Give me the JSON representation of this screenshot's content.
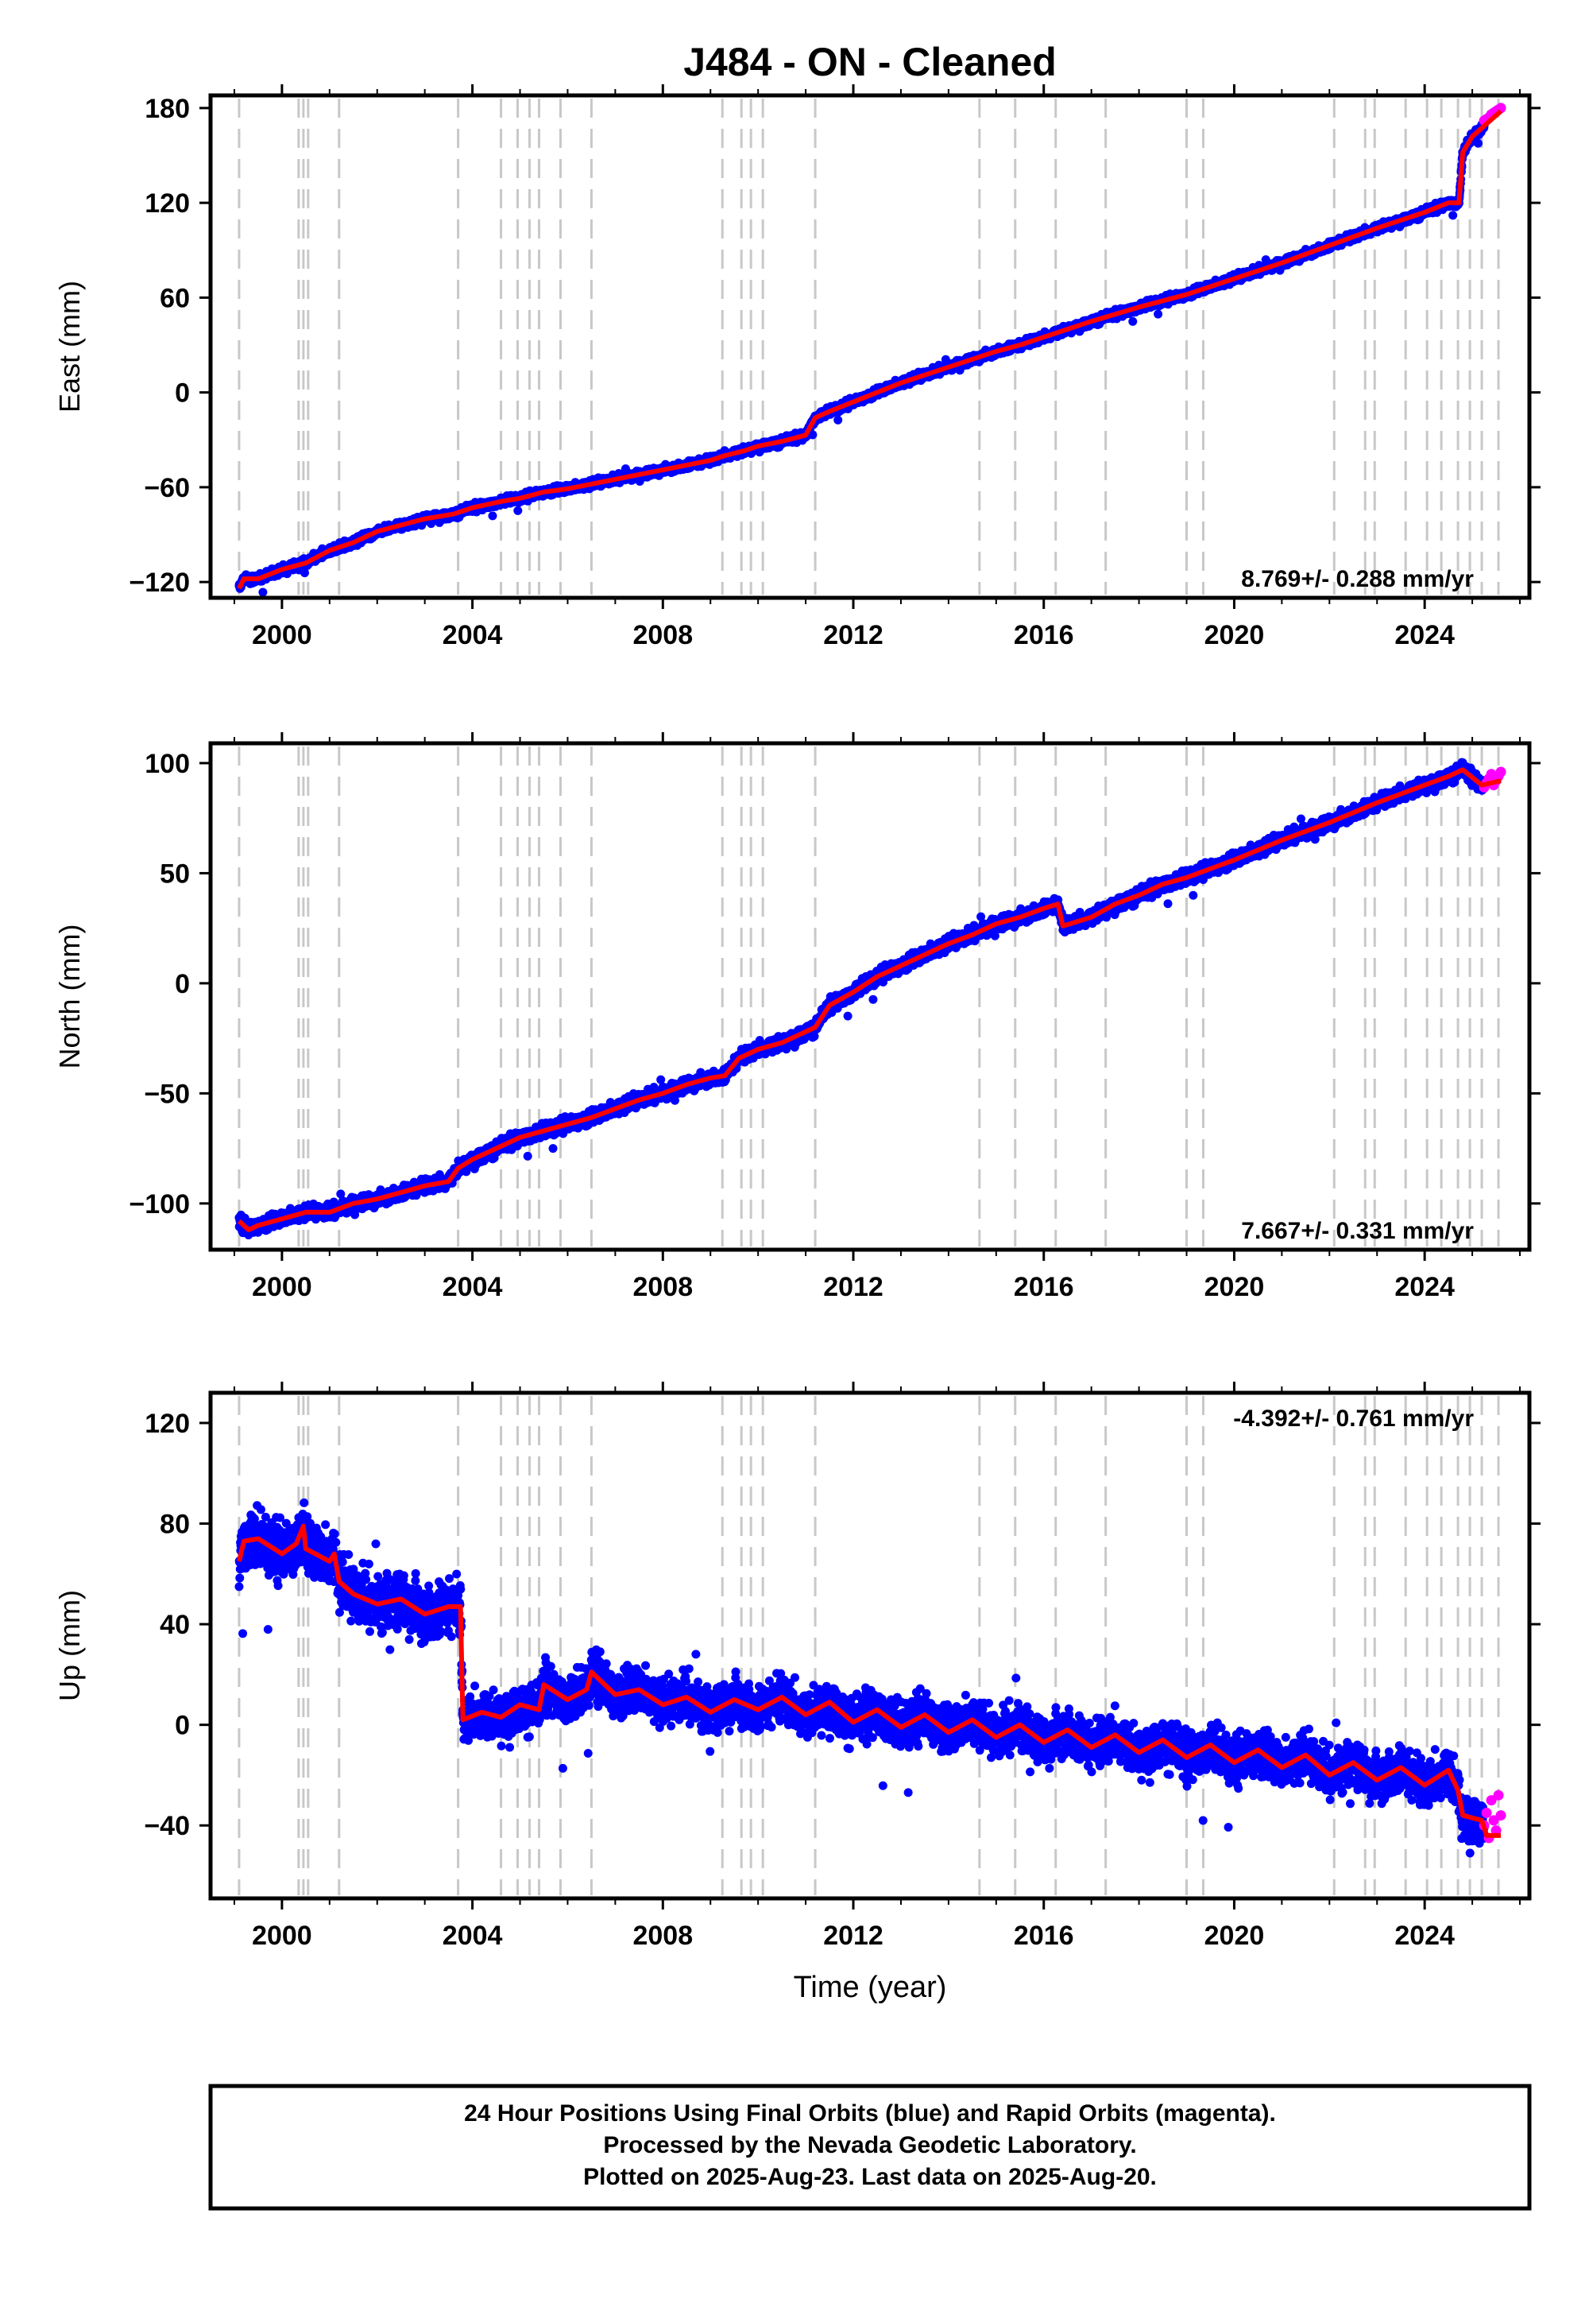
{
  "title": "J484  - ON - Cleaned",
  "colors": {
    "final_orbits": "#0000ff",
    "rapid_orbits": "#ff00ff",
    "model_fit": "#ff0000",
    "event_lines": "#c8c8c8"
  },
  "chart_data": [
    {
      "type": "scatter",
      "component": "east",
      "ylabel": "East (mm)",
      "xlabel": "",
      "xlim": [
        1998.5,
        2026.2
      ],
      "ylim": [
        -130,
        188
      ],
      "xticks": [
        2000,
        2004,
        2008,
        2012,
        2016,
        2020,
        2024
      ],
      "yticks": [
        -120,
        -60,
        0,
        60,
        120,
        180
      ],
      "rate_label": "8.769+/- 0.288 mm/yr",
      "rate_position": "bottom-right",
      "scatter_spread_mm": 2.5,
      "series": [
        {
          "name": "model",
          "x": [
            1999.1,
            1999.2,
            1999.5,
            2000.0,
            2000.5,
            2001.0,
            2001.5,
            2002.0,
            2002.5,
            2003.0,
            2003.6,
            2004.0,
            2004.6,
            2005.0,
            2005.5,
            2006.0,
            2006.5,
            2007.0,
            2007.5,
            2008.0,
            2008.5,
            2009.0,
            2009.3,
            2009.7,
            2010.0,
            2010.5,
            2011.0,
            2011.2,
            2011.5,
            2012.0,
            2013.0,
            2014.0,
            2014.6,
            2015.0,
            2015.5,
            2016.0,
            2016.5,
            2017.0,
            2018.0,
            2019.0,
            2020.0,
            2021.0,
            2022.0,
            2023.0,
            2024.0,
            2024.5,
            2024.72,
            2024.8,
            2025.0,
            2025.3,
            2025.6
          ],
          "y": [
            -124,
            -118,
            -118,
            -112,
            -108,
            -100,
            -95,
            -88,
            -84,
            -80,
            -77,
            -73,
            -69,
            -67,
            -63,
            -61,
            -58,
            -55,
            -52,
            -49,
            -46,
            -43,
            -40,
            -37,
            -34,
            -31,
            -27,
            -16,
            -12,
            -6,
            6,
            16,
            22,
            26,
            30,
            35,
            40,
            45,
            54,
            62,
            72,
            82,
            93,
            104,
            114,
            120,
            120,
            152,
            162,
            170,
            178
          ]
        },
        {
          "name": "rapid",
          "x": [
            2025.25,
            2025.3,
            2025.35,
            2025.4,
            2025.45,
            2025.5,
            2025.55,
            2025.6
          ],
          "y": [
            172,
            173,
            174,
            176,
            177,
            178,
            179,
            180
          ]
        }
      ]
    },
    {
      "type": "scatter",
      "component": "north",
      "ylabel": "North (mm)",
      "xlabel": "",
      "xlim": [
        1998.5,
        2026.2
      ],
      "ylim": [
        -121,
        109
      ],
      "xticks": [
        2000,
        2004,
        2008,
        2012,
        2016,
        2020,
        2024
      ],
      "yticks": [
        -100,
        -50,
        0,
        50,
        100
      ],
      "rate_label": "7.667+/- 0.331 mm/yr",
      "rate_position": "bottom-right",
      "scatter_spread_mm": 3.0,
      "series": [
        {
          "name": "model",
          "x": [
            1999.1,
            1999.3,
            1999.5,
            2000.0,
            2000.5,
            2001.0,
            2001.5,
            2002.0,
            2002.5,
            2003.0,
            2003.5,
            2003.7,
            2004.0,
            2004.5,
            2005.0,
            2005.5,
            2006.0,
            2006.5,
            2007.0,
            2007.5,
            2008.0,
            2008.5,
            2009.0,
            2009.3,
            2009.6,
            2010.0,
            2010.5,
            2011.0,
            2011.2,
            2011.5,
            2012.0,
            2012.5,
            2013.0,
            2013.5,
            2014.0,
            2014.5,
            2015.0,
            2015.5,
            2016.0,
            2016.3,
            2016.4,
            2017.0,
            2017.5,
            2018.0,
            2018.5,
            2019.0,
            2019.5,
            2020.0,
            2021.0,
            2022.0,
            2023.0,
            2024.0,
            2024.5,
            2024.8,
            2025.2,
            2025.6
          ],
          "y": [
            -108,
            -112,
            -110,
            -107,
            -104,
            -104,
            -100,
            -98,
            -95,
            -92,
            -90,
            -84,
            -80,
            -75,
            -70,
            -67,
            -64,
            -61,
            -57,
            -53,
            -50,
            -46,
            -43,
            -42,
            -34,
            -30,
            -27,
            -22,
            -20,
            -10,
            -4,
            3,
            8,
            13,
            18,
            22,
            27,
            30,
            34,
            36,
            26,
            30,
            36,
            40,
            45,
            48,
            52,
            56,
            65,
            73,
            82,
            90,
            94,
            97,
            90,
            92
          ]
        },
        {
          "name": "rapid",
          "x": [
            2025.25,
            2025.3,
            2025.35,
            2025.4,
            2025.45,
            2025.5,
            2025.55,
            2025.6
          ],
          "y": [
            89,
            91,
            93,
            95,
            90,
            92,
            94,
            96
          ]
        }
      ]
    },
    {
      "type": "scatter",
      "component": "up",
      "ylabel": "Up (mm)",
      "xlabel": "Time (year)",
      "xlim": [
        1998.5,
        2026.2
      ],
      "ylim": [
        -69,
        132
      ],
      "xticks": [
        2000,
        2004,
        2008,
        2012,
        2016,
        2020,
        2024
      ],
      "yticks": [
        -40,
        0,
        40,
        80,
        120
      ],
      "rate_label": "-4.392+/- 0.761 mm/yr",
      "rate_position": "top-right",
      "scatter_spread_mm": 9.0,
      "series": [
        {
          "name": "model",
          "x": [
            1999.1,
            1999.2,
            1999.5,
            2000.0,
            2000.3,
            2000.45,
            2000.5,
            2001.0,
            2001.1,
            2001.2,
            2001.5,
            2002.0,
            2002.5,
            2003.0,
            2003.5,
            2003.75,
            2003.8,
            2004.2,
            2004.6,
            2005.0,
            2005.4,
            2005.5,
            2006.0,
            2006.4,
            2006.5,
            2007.0,
            2007.5,
            2008.0,
            2008.5,
            2009.0,
            2009.5,
            2010.0,
            2010.5,
            2011.0,
            2011.5,
            2012.0,
            2012.5,
            2013.0,
            2013.5,
            2014.0,
            2014.5,
            2015.0,
            2015.5,
            2016.0,
            2016.5,
            2017.0,
            2017.5,
            2018.0,
            2018.5,
            2019.0,
            2019.5,
            2020.0,
            2020.5,
            2021.0,
            2021.5,
            2022.0,
            2022.5,
            2023.0,
            2023.5,
            2024.0,
            2024.5,
            2024.7,
            2024.8,
            2025.2,
            2025.3,
            2025.6
          ],
          "y": [
            65,
            73,
            74,
            68,
            72,
            79,
            70,
            65,
            68,
            57,
            52,
            48,
            50,
            44,
            47,
            47,
            2,
            5,
            3,
            8,
            6,
            16,
            10,
            14,
            21,
            12,
            14,
            8,
            11,
            5,
            10,
            6,
            11,
            4,
            9,
            1,
            6,
            -1,
            4,
            -3,
            2,
            -5,
            0,
            -7,
            -2,
            -9,
            -4,
            -11,
            -6,
            -13,
            -8,
            -15,
            -10,
            -17,
            -12,
            -20,
            -15,
            -22,
            -17,
            -24,
            -18,
            -26,
            -36,
            -38,
            -44,
            -44
          ]
        },
        {
          "name": "rapid",
          "x": [
            2025.25,
            2025.3,
            2025.35,
            2025.4,
            2025.45,
            2025.5,
            2025.55,
            2025.6
          ],
          "y": [
            -40,
            -35,
            -45,
            -30,
            -38,
            -42,
            -28,
            -36
          ]
        }
      ]
    }
  ],
  "event_lines": [
    1999.1,
    2000.35,
    2000.45,
    2000.55,
    2001.2,
    2003.7,
    2004.6,
    2004.95,
    2005.2,
    2005.4,
    2005.85,
    2006.5,
    2009.25,
    2009.65,
    2009.85,
    2010.1,
    2011.2,
    2014.65,
    2015.4,
    2016.25,
    2017.3,
    2019.0,
    2019.35,
    2022.1,
    2022.75,
    2022.95,
    2023.6,
    2024.05,
    2024.35,
    2024.7,
    2024.95,
    2025.2,
    2025.55
  ],
  "footer": {
    "line1": "24 Hour Positions Using Final Orbits (blue) and Rapid Orbits (magenta).",
    "line2": "Processed by the Nevada Geodetic Laboratory.",
    "line3": "Plotted on 2025-Aug-23. Last data on 2025-Aug-20."
  }
}
